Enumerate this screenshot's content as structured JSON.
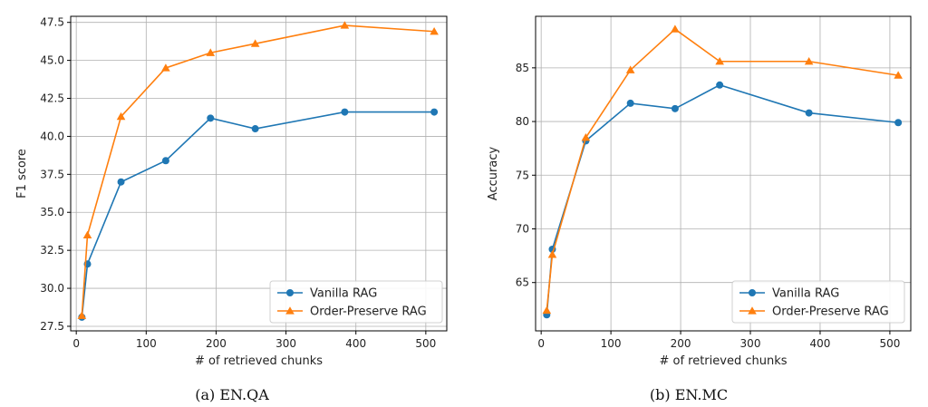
{
  "chart_data": [
    {
      "type": "line",
      "caption": "(a) EN.QA",
      "xlabel": "# of retrieved chunks",
      "ylabel": "F1 score",
      "xlim": [
        -8,
        530
      ],
      "ylim": [
        27.2,
        47.9
      ],
      "xticks": [
        0,
        100,
        200,
        300,
        400,
        500
      ],
      "yticks": [
        27.5,
        30.0,
        32.5,
        35.0,
        37.5,
        40.0,
        42.5,
        45.0,
        47.5
      ],
      "xtick_labels": [
        "0",
        "100",
        "200",
        "300",
        "400",
        "500"
      ],
      "ytick_labels": [
        "27.5",
        "30.0",
        "32.5",
        "35.0",
        "37.5",
        "40.0",
        "42.5",
        "45.0",
        "47.5"
      ],
      "grid": true,
      "legend_position": "bottom-right",
      "series": [
        {
          "name": "Vanilla RAG",
          "color": "#1f77b4",
          "marker": "circle",
          "x": [
            8,
            16,
            64,
            128,
            192,
            256,
            384,
            512
          ],
          "values": [
            28.1,
            31.6,
            37.0,
            38.4,
            41.2,
            40.5,
            41.6,
            41.6
          ]
        },
        {
          "name": "Order-Preserve RAG",
          "color": "#ff7f0e",
          "marker": "triangle",
          "x": [
            8,
            16,
            64,
            128,
            192,
            256,
            384,
            512
          ],
          "values": [
            28.2,
            33.5,
            41.3,
            44.5,
            45.5,
            46.1,
            47.3,
            46.9
          ]
        }
      ]
    },
    {
      "type": "line",
      "caption": "(b) EN.MC",
      "xlabel": "# of retrieved chunks",
      "ylabel": "Accuracy",
      "xlim": [
        -8,
        530
      ],
      "ylim": [
        60.5,
        89.8
      ],
      "xticks": [
        0,
        100,
        200,
        300,
        400,
        500
      ],
      "yticks": [
        65,
        70,
        75,
        80,
        85
      ],
      "xtick_labels": [
        "0",
        "100",
        "200",
        "300",
        "400",
        "500"
      ],
      "ytick_labels": [
        "65",
        "70",
        "75",
        "80",
        "85"
      ],
      "grid": true,
      "legend_position": "bottom-right",
      "series": [
        {
          "name": "Vanilla RAG",
          "color": "#1f77b4",
          "marker": "circle",
          "x": [
            8,
            16,
            64,
            128,
            192,
            256,
            384,
            512
          ],
          "values": [
            62.0,
            68.1,
            78.2,
            81.7,
            81.2,
            83.4,
            80.8,
            79.9
          ]
        },
        {
          "name": "Order-Preserve RAG",
          "color": "#ff7f0e",
          "marker": "triangle",
          "x": [
            8,
            16,
            64,
            128,
            192,
            256,
            384,
            512
          ],
          "values": [
            62.4,
            67.6,
            78.5,
            84.8,
            88.6,
            85.6,
            85.6,
            84.3
          ]
        }
      ]
    }
  ]
}
